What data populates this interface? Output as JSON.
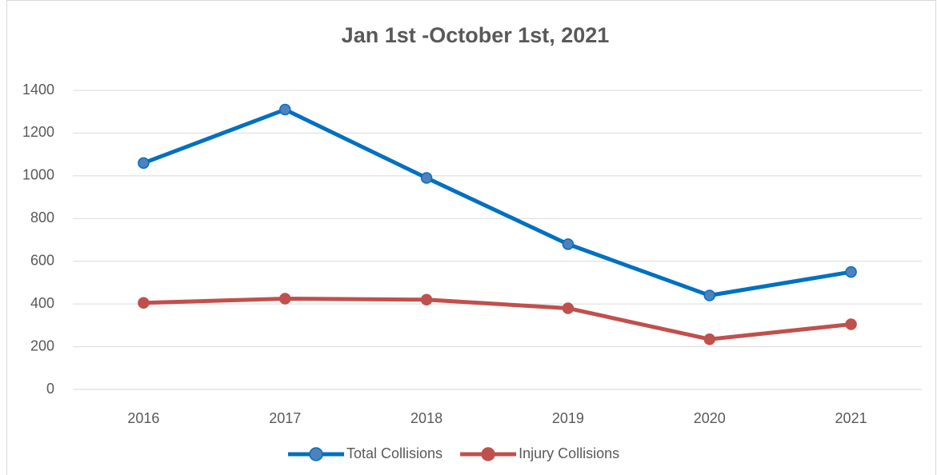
{
  "chart_data": {
    "type": "line",
    "title": "Jan 1st -October 1st, 2021",
    "categories": [
      "2016",
      "2017",
      "2018",
      "2019",
      "2020",
      "2021"
    ],
    "series": [
      {
        "name": "Total Collisions",
        "color": "#0070c0",
        "values": [
          1060,
          1310,
          990,
          680,
          440,
          550
        ]
      },
      {
        "name": "Injury Collisions",
        "color": "#c0504d",
        "values": [
          405,
          425,
          420,
          380,
          235,
          305
        ]
      }
    ],
    "ylim": [
      0,
      1400
    ],
    "yticks": [
      0,
      200,
      400,
      600,
      800,
      1000,
      1200,
      1400
    ],
    "grid": true,
    "legend": "bottom"
  }
}
